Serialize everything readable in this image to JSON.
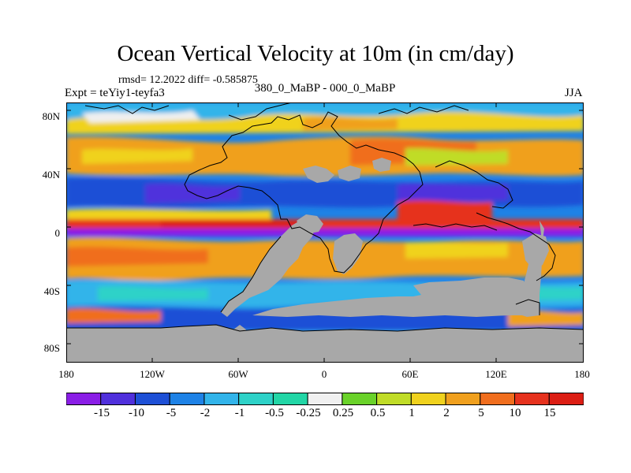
{
  "title": "Ocean Vertical Velocity at 10m (in cm/day)",
  "stats": "rmsd= 12.2022 diff= -0.585875",
  "experiment": "Expt = teYiy1-teyfa3",
  "difference_label": "380_0_MaBP - 000_0_MaBP",
  "season": "JJA",
  "lat_labels": [
    "80N",
    "40N",
    "0",
    "40S",
    "80S"
  ],
  "lon_labels": [
    "180",
    "120W",
    "60W",
    "0",
    "60E",
    "120E",
    "180"
  ],
  "colorbar": {
    "labels": [
      "-15",
      "-10",
      "-5",
      "-2",
      "-1",
      "-0.5",
      "-0.25",
      "0.25",
      "0.5",
      "1",
      "2",
      "5",
      "10",
      "15"
    ],
    "colors": [
      "#8a1ee6",
      "#5030dc",
      "#1e50d6",
      "#1e82e6",
      "#32b4ea",
      "#2ed2c8",
      "#22d6a6",
      "#f0f0f0",
      "#6ad22a",
      "#c0dc28",
      "#f0d21e",
      "#f0a01e",
      "#f06e1e",
      "#e6321e",
      "#dc1e14"
    ]
  },
  "land_color": "#a8a8a8"
}
